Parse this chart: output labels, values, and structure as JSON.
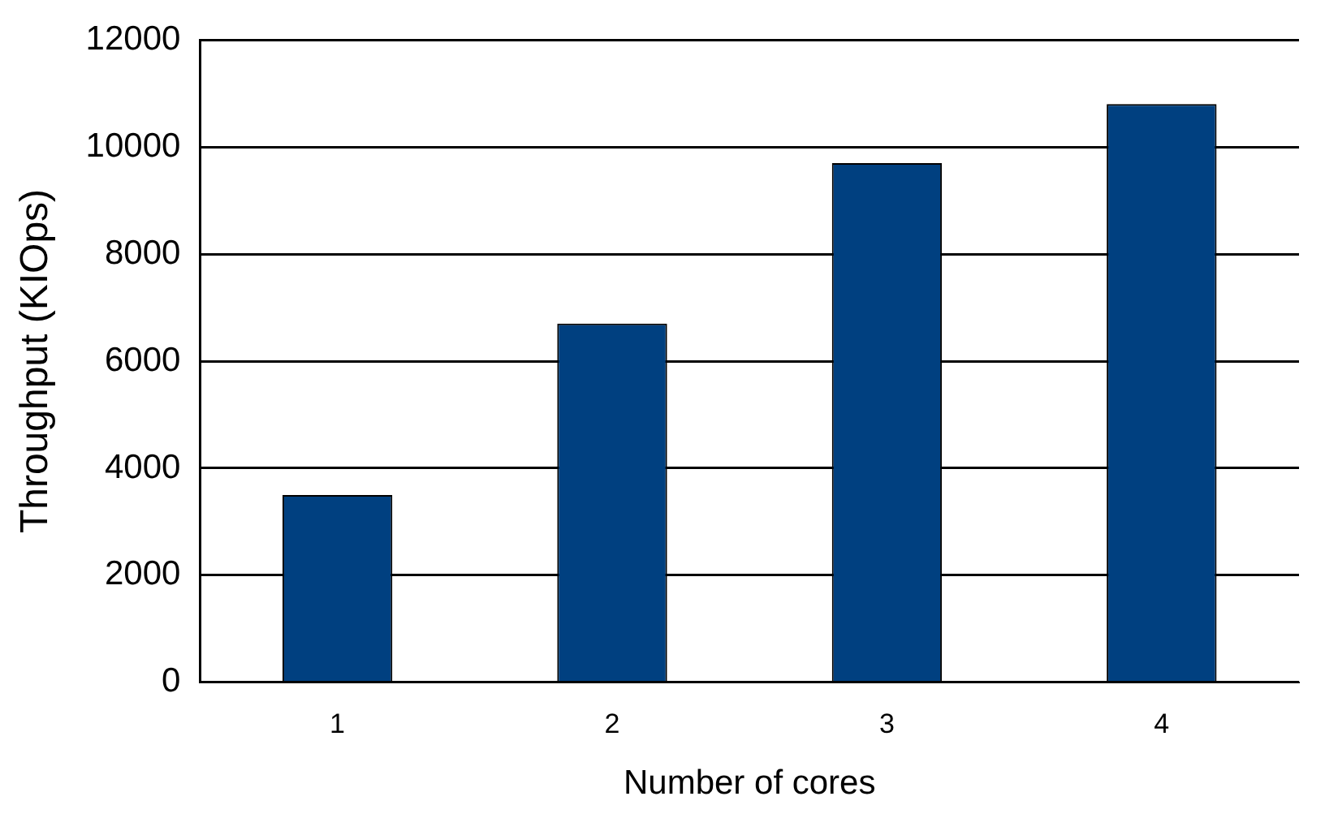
{
  "chart_data": {
    "type": "bar",
    "categories": [
      "1",
      "2",
      "3",
      "4"
    ],
    "values": [
      3500,
      6700,
      9700,
      10800
    ],
    "color": "#004080",
    "xlabel": "Number of cores",
    "ylabel": "Throughput (KIOps)",
    "ylim": [
      0,
      12000
    ],
    "yticks": [
      0,
      2000,
      4000,
      6000,
      8000,
      10000,
      12000
    ],
    "grid": "y",
    "legend": false
  }
}
